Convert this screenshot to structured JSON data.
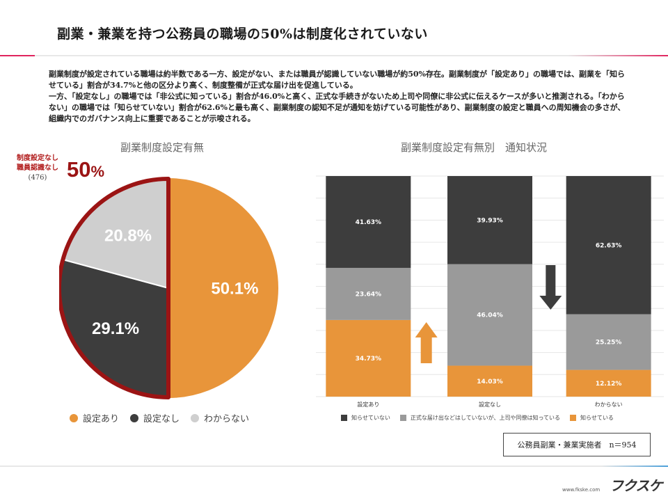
{
  "page": {
    "title": "副業・兼業を持つ公務員の職場の50%は制度化されていない",
    "description": [
      "副業制度が設定されている職場は約半数である一方、設定がない、または職員が認識していない職場が約50%存在。副業制度が「設定あり」の職場では、副業を「知らせている」割合が34.7%と他の区分より高く、制度整備が正式な届け出を促進している。",
      "一方、「設定なし」の職場では「非公式に知っている」割合が46.0%と高く、正式な手続きがないため上司や同僚に非公式に伝えるケースが多いと推測される。「わからない」の職場では「知らせていない」割合が62.6%と最も高く、副業制度の認知不足が通知を妨げている可能性があり、副業制度の設定と職員への周知機会の多さが、組織内でのガバナンス向上に重要であることが示唆される。"
    ],
    "sample_note": "公務員副業・兼業実施者　n＝954",
    "url": "www.fkske.com",
    "logo_text": "フクスケ"
  },
  "callout": {
    "line1": "制度設定なし",
    "line2": "職員認識なし",
    "line3": "(476)",
    "big_value": "50",
    "big_unit": "%"
  },
  "colors": {
    "orange": "#e8953a",
    "dark": "#3d3d3d",
    "gray": "#9a9a9a",
    "light": "#cfcfcf",
    "callout_red": "#9b1414"
  },
  "chart_data": [
    {
      "type": "pie",
      "title": "副業制度設定有無",
      "legend_position": "bottom",
      "slices": [
        {
          "name": "設定あり",
          "value": 50.1,
          "label": "50.1%",
          "color": "#e8953a"
        },
        {
          "name": "設定なし",
          "value": 29.1,
          "label": "29.1%",
          "color": "#3d3d3d"
        },
        {
          "name": "わからない",
          "value": 20.8,
          "label": "20.8%",
          "color": "#cfcfcf"
        }
      ]
    },
    {
      "type": "bar",
      "stacked": true,
      "title": "副業制度設定有無別　通知状況",
      "categories": [
        "設定あり",
        "設定なし",
        "わからない"
      ],
      "ylim": [
        0,
        100
      ],
      "grid": true,
      "legend_position": "bottom",
      "series": [
        {
          "name": "知らせている",
          "values": [
            34.73,
            14.03,
            12.12
          ],
          "labels": [
            "34.73%",
            "14.03%",
            "12.12%"
          ],
          "color": "#e8953a"
        },
        {
          "name": "正式な届け出などはしていないが、上司や同僚は知っている",
          "values": [
            23.64,
            46.04,
            25.25
          ],
          "labels": [
            "23.64%",
            "46.04%",
            "25.25%"
          ],
          "color": "#9a9a9a"
        },
        {
          "name": "知らせていない",
          "values": [
            41.63,
            39.93,
            62.63
          ],
          "labels": [
            "41.63%",
            "39.93%",
            "62.63%"
          ],
          "color": "#3d3d3d"
        }
      ],
      "legend_order": [
        "知らせていない",
        "正式な届け出などはしていないが、上司や同僚は知っている",
        "知らせている"
      ],
      "annotations": [
        {
          "between": [
            "設定あり",
            "設定なし"
          ],
          "direction": "up",
          "color": "#e8953a"
        },
        {
          "between": [
            "設定なし",
            "わからない"
          ],
          "direction": "down",
          "color": "#3d3d3d"
        }
      ]
    }
  ]
}
